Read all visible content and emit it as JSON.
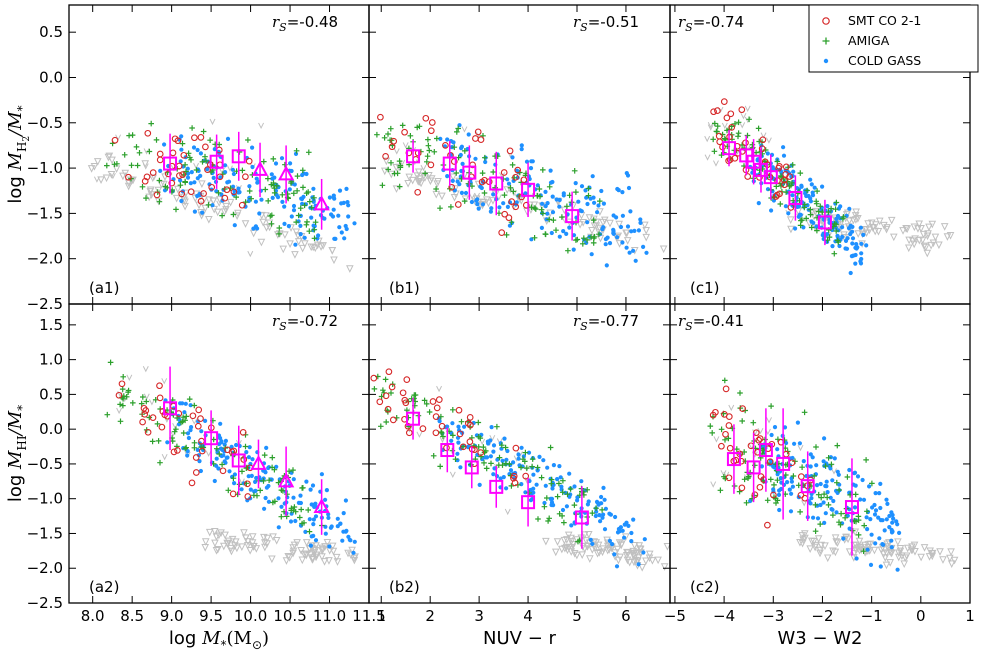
{
  "chart_data": {
    "type": "scatter",
    "legend": {
      "placement": "top-right",
      "entries": [
        {
          "label": "SMT CO 2-1",
          "marker": "open-circle",
          "color": "#d62728"
        },
        {
          "label": "AMIGA",
          "marker": "plus",
          "color": "#2ca02c"
        },
        {
          "label": "COLD GASS",
          "marker": "dot",
          "color": "#1e90ff"
        }
      ]
    },
    "colors": {
      "smt": "#d62728",
      "amiga": "#2ca02c",
      "coldgass": "#1e90ff",
      "upper_limit": "#c0c0c0",
      "binned": "#ff00ff"
    },
    "ylabels": {
      "row1": {
        "main": "log ",
        "symbol": "M",
        "sub": "H",
        "subsub": "2",
        "rest": "/M",
        "rest_sub": "*"
      },
      "row2": {
        "main": "log ",
        "symbol": "M",
        "sub": "HI",
        "rest": "/M",
        "rest_sub": "*"
      }
    },
    "rows": [
      {
        "ylim": [
          -2.5,
          0.8
        ],
        "yticks": [
          "0.5",
          "0.0",
          "−0.5",
          "−1.0",
          "−1.5",
          "−2.0",
          "−2.5"
        ],
        "ytick_values": [
          0.5,
          0.0,
          -0.5,
          -1.0,
          -1.5,
          -2.0,
          -2.5
        ]
      },
      {
        "ylim": [
          -2.5,
          1.8
        ],
        "yticks": [
          "1.5",
          "1.0",
          "0.5",
          "0.0",
          "−0.5",
          "−1.0",
          "−1.5",
          "−2.0",
          "−2.5"
        ],
        "ytick_values": [
          1.5,
          1.0,
          0.5,
          0.0,
          -0.5,
          -1.0,
          -1.5,
          -2.0,
          -2.5
        ]
      }
    ],
    "columns": [
      {
        "xlim": [
          7.7,
          11.5
        ],
        "xticks": [
          "8.0",
          "8.5",
          "9.0",
          "9.5",
          "10.0",
          "10.5",
          "11.0",
          "11.5"
        ],
        "xtick_values": [
          8.0,
          8.5,
          9.0,
          9.5,
          10.0,
          10.5,
          11.0,
          11.5
        ],
        "xlabel": {
          "main": "log ",
          "symbol": "M",
          "sub": "*",
          "rest": "(M",
          "rest_sub": "⊙",
          "close": ")"
        }
      },
      {
        "xlim": [
          0.75,
          6.9
        ],
        "xticks": [
          "1",
          "2",
          "3",
          "4",
          "5",
          "6"
        ],
        "xtick_values": [
          1,
          2,
          3,
          4,
          5,
          6
        ],
        "xlabel": {
          "text": "NUV − r"
        }
      },
      {
        "xlim": [
          -5.1,
          1.0
        ],
        "xticks": [
          "−5",
          "−4",
          "−3",
          "−2",
          "−1",
          "0",
          "1"
        ],
        "xtick_values": [
          -5,
          -4,
          -3,
          -2,
          -1,
          0,
          1
        ],
        "xlabel": {
          "text": "W3 − W2"
        }
      }
    ],
    "panels": [
      {
        "id": "a1",
        "label": "(a1)",
        "row": 0,
        "col": 0,
        "rs_symbol": "r",
        "rs_sub": "S",
        "rs_value": "=-0.48",
        "rs_pos": "top-right",
        "binned": {
          "marker": "square",
          "points": [
            [
              8.98,
              -0.95,
              0.33
            ],
            [
              9.57,
              -0.93,
              0.3
            ],
            [
              9.85,
              -0.87,
              0.27
            ]
          ]
        },
        "binned2": {
          "marker": "triangle",
          "points": [
            [
              10.12,
              -1.02,
              0.3
            ],
            [
              10.45,
              -1.07,
              0.32
            ],
            [
              10.9,
              -1.4,
              0.28
            ]
          ]
        },
        "trend": {
          "x0": 8.2,
          "x1": 11.3,
          "y0": -0.75,
          "y1": -1.55,
          "spread": 0.35
        },
        "limits": {
          "x0": 8.1,
          "x1": 11.2,
          "y0": -1.0,
          "y1": -2.0
        }
      },
      {
        "id": "b1",
        "label": "(b1)",
        "row": 0,
        "col": 1,
        "rs_symbol": "r",
        "rs_sub": "S",
        "rs_value": "=-0.51",
        "rs_pos": "top-right",
        "binned": {
          "marker": "square",
          "points": [
            [
              1.65,
              -0.87,
              0.18
            ],
            [
              2.4,
              -0.95,
              0.25
            ],
            [
              2.8,
              -1.05,
              0.3
            ],
            [
              3.35,
              -1.17,
              0.35
            ],
            [
              4.0,
              -1.24,
              0.3
            ],
            [
              4.9,
              -1.53,
              0.27
            ]
          ]
        },
        "trend": {
          "x0": 1.0,
          "x1": 6.3,
          "y0": -0.7,
          "y1": -1.7,
          "spread": 0.38
        },
        "limits": {
          "x0": 1.0,
          "x1": 6.5,
          "y0": -1.0,
          "y1": -1.8
        }
      },
      {
        "id": "c1",
        "label": "(c1)",
        "row": 0,
        "col": 2,
        "rs_symbol": "r",
        "rs_sub": "S",
        "rs_value": "=-0.74",
        "rs_pos": "top-left",
        "binned": {
          "marker": "square",
          "points": [
            [
              -3.9,
              -0.78,
              0.2
            ],
            [
              -3.55,
              -0.86,
              0.22
            ],
            [
              -3.4,
              -0.93,
              0.25
            ],
            [
              -3.25,
              -1.02,
              0.25
            ],
            [
              -3.05,
              -1.1,
              0.25
            ],
            [
              -2.55,
              -1.33,
              0.25
            ],
            [
              -1.95,
              -1.6,
              0.25
            ]
          ]
        },
        "trend": {
          "x0": -4.2,
          "x1": -1.2,
          "y0": -0.5,
          "y1": -1.9,
          "spread": 0.25
        },
        "limits": {
          "x0": -2.5,
          "x1": 0.5,
          "y0": -1.5,
          "y1": -1.8
        }
      },
      {
        "id": "a2",
        "label": "(a2)",
        "row": 1,
        "col": 0,
        "rs_symbol": "r",
        "rs_sub": "S",
        "rs_value": "=-0.72",
        "rs_pos": "top-right",
        "binned": {
          "marker": "square",
          "points": [
            [
              8.98,
              0.3,
              0.6
            ],
            [
              9.5,
              -0.13,
              0.4
            ],
            [
              9.85,
              -0.45,
              0.5
            ]
          ]
        },
        "binned2": {
          "marker": "triangle",
          "points": [
            [
              10.1,
              -0.5,
              0.35
            ],
            [
              10.45,
              -0.75,
              0.5
            ],
            [
              10.9,
              -1.12,
              0.4
            ]
          ]
        },
        "trend": {
          "x0": 8.3,
          "x1": 11.3,
          "y0": 0.6,
          "y1": -1.5,
          "spread": 0.4
        },
        "limits": {
          "x0": 9.5,
          "x1": 11.2,
          "y0": -1.6,
          "y1": -1.8
        }
      },
      {
        "id": "b2",
        "label": "(b2)",
        "row": 1,
        "col": 1,
        "rs_symbol": "r",
        "rs_sub": "S",
        "rs_value": "=-0.77",
        "rs_pos": "top-right",
        "binned": {
          "marker": "square",
          "points": [
            [
              1.65,
              0.15,
              0.3
            ],
            [
              2.35,
              -0.3,
              0.32
            ],
            [
              2.85,
              -0.55,
              0.3
            ],
            [
              3.35,
              -0.83,
              0.3
            ],
            [
              4.0,
              -1.05,
              0.35
            ],
            [
              5.1,
              -1.27,
              0.45
            ]
          ]
        },
        "trend": {
          "x0": 0.9,
          "x1": 6.3,
          "y0": 0.6,
          "y1": -1.6,
          "spread": 0.35
        },
        "limits": {
          "x0": 4.5,
          "x1": 6.6,
          "y0": -1.6,
          "y1": -1.85
        }
      },
      {
        "id": "c2",
        "label": "(c2)",
        "row": 1,
        "col": 2,
        "rs_symbol": "r",
        "rs_sub": "S",
        "rs_value": "=-0.41",
        "rs_pos": "top-left",
        "binned": {
          "marker": "square",
          "points": [
            [
              -3.8,
              -0.43,
              0.5
            ],
            [
              -3.4,
              -0.55,
              0.5
            ],
            [
              -3.15,
              -0.3,
              0.6
            ],
            [
              -2.8,
              -0.5,
              0.8
            ],
            [
              -2.3,
              -0.82,
              0.5
            ],
            [
              -1.4,
              -1.12,
              0.7
            ]
          ]
        },
        "trend": {
          "x0": -4.2,
          "x1": -0.5,
          "y0": -0.1,
          "y1": -1.3,
          "spread": 0.55
        },
        "limits": {
          "x0": -2.5,
          "x1": 0.6,
          "y0": -1.6,
          "y1": -1.85
        }
      }
    ]
  }
}
